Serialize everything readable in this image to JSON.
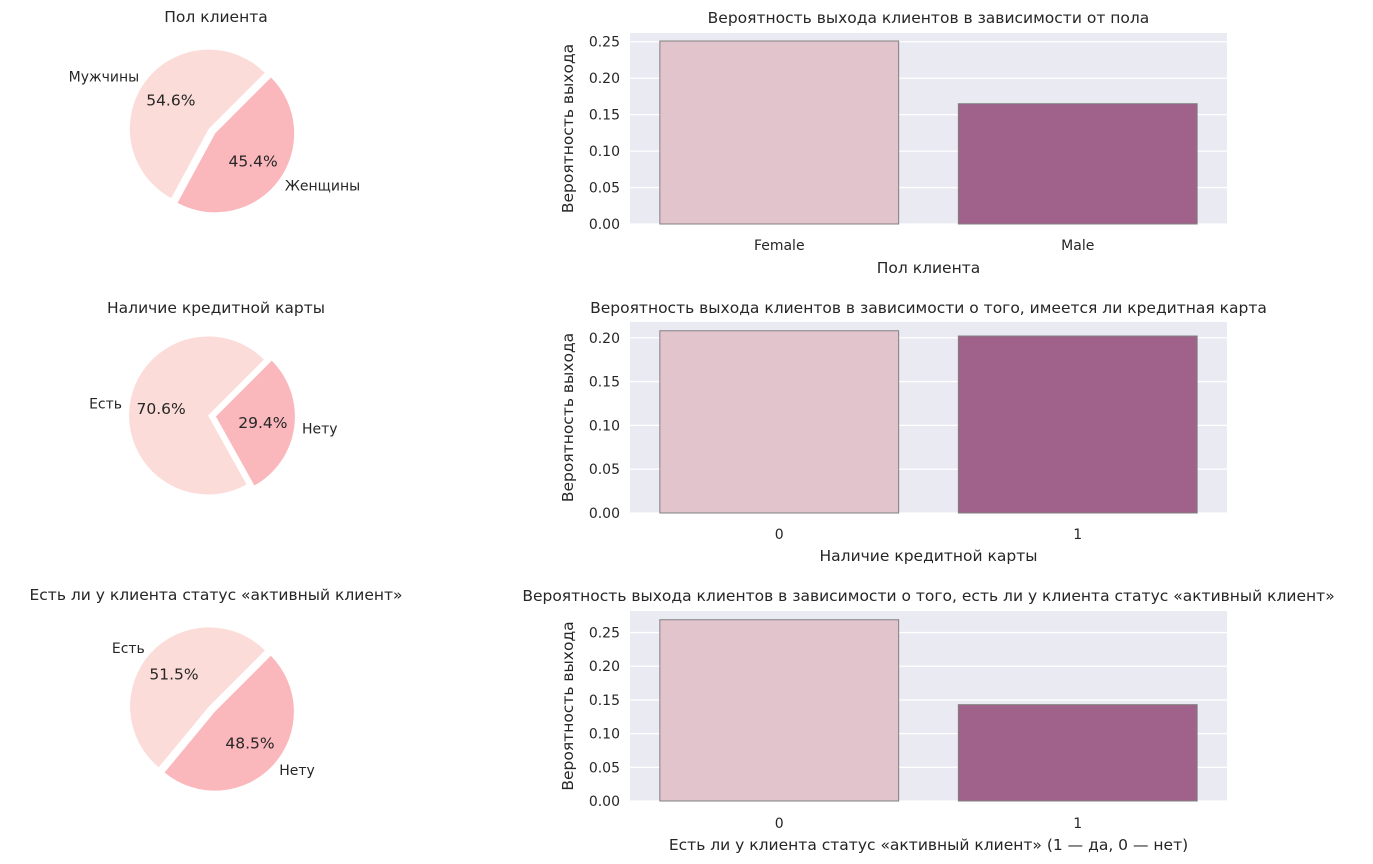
{
  "chart_data": [
    {
      "type": "pie",
      "title": "Пол клиента",
      "slices": [
        {
          "label": "Мужчины",
          "pct_label": "54.6%",
          "value": 54.6,
          "color": "#fcdcd8"
        },
        {
          "label": "Женщины",
          "pct_label": "45.4%",
          "value": 45.4,
          "color": "#fbb8bc"
        }
      ],
      "explode": true
    },
    {
      "type": "bar",
      "title": "Вероятность выхода клиентов в зависимости от пола",
      "categories": [
        "Female",
        "Male"
      ],
      "values": [
        0.251,
        0.165
      ],
      "colors": [
        "#e2c4cd",
        "#a0628a"
      ],
      "xlabel": "Пол клиента",
      "ylabel": "Вероятность выхода",
      "ylim": [
        0,
        0.262
      ],
      "yticks": [
        "0.00",
        "0.05",
        "0.10",
        "0.15",
        "0.20",
        "0.25"
      ],
      "grid": true
    },
    {
      "type": "pie",
      "title": "Наличие кредитной карты",
      "slices": [
        {
          "label": "Есть",
          "pct_label": "70.6%",
          "value": 70.6,
          "color": "#fcdcd8"
        },
        {
          "label": "Нету",
          "pct_label": "29.4%",
          "value": 29.4,
          "color": "#fbb8bc"
        }
      ],
      "explode": true
    },
    {
      "type": "bar",
      "title": "Вероятность выхода клиентов в зависимости о того, имеется ли кредитная карта",
      "categories": [
        "0",
        "1"
      ],
      "values": [
        0.208,
        0.202
      ],
      "colors": [
        "#e2c4cd",
        "#a0628a"
      ],
      "xlabel": "Наличие кредитной карты",
      "ylabel": "Вероятность выхода",
      "ylim": [
        0,
        0.218
      ],
      "yticks": [
        "0.00",
        "0.05",
        "0.10",
        "0.15",
        "0.20"
      ],
      "grid": true
    },
    {
      "type": "pie",
      "title": "Есть ли у клиента статус «активный клиент»",
      "slices": [
        {
          "label": "Есть",
          "pct_label": "51.5%",
          "value": 51.5,
          "color": "#fcdcd8"
        },
        {
          "label": "Нету",
          "pct_label": "48.5%",
          "value": 48.5,
          "color": "#fbb8bc"
        }
      ],
      "explode": true
    },
    {
      "type": "bar",
      "title": "Вероятность выхода клиентов в зависимости о того, есть ли у клиента статус «активный клиент»",
      "categories": [
        "0",
        "1"
      ],
      "values": [
        0.269,
        0.143
      ],
      "colors": [
        "#e2c4cd",
        "#a0628a"
      ],
      "xlabel": "Есть ли у клиента статус «активный клиент» (1 — да, 0 — нет)",
      "ylabel": "Вероятность выхода",
      "ylim": [
        0,
        0.282
      ],
      "yticks": [
        "0.00",
        "0.05",
        "0.10",
        "0.15",
        "0.20",
        "0.25"
      ],
      "grid": true
    }
  ],
  "style": {
    "axes_bg": "#eaeaf2",
    "grid_color": "#ffffff",
    "bar_edge": "#808080",
    "text_color": "#262626"
  }
}
